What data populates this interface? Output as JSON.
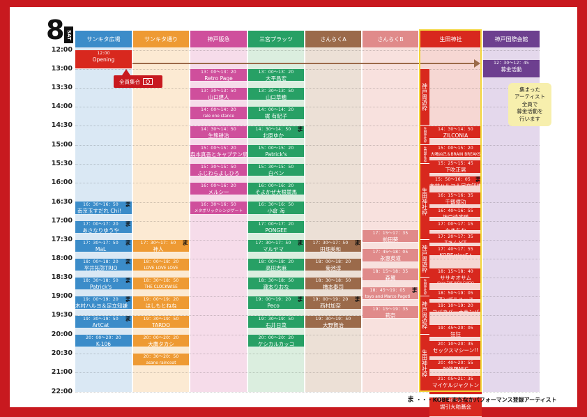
{
  "day": {
    "number": "8",
    "weekday": "SAT"
  },
  "colors": {
    "frame": "#c8191f",
    "highlight": "#f3d63a",
    "note_bg": "#f7efad",
    "arrow": "#9b6a4a"
  },
  "times": [
    "12:00",
    "13:00",
    "13:30",
    "14:00",
    "14:30",
    "15:00",
    "15:30",
    "16:00",
    "16:30",
    "17:00",
    "17:30",
    "18:00",
    "18:30",
    "19:00",
    "19:30",
    "20:00",
    "20:30",
    "21:00",
    "22:00"
  ],
  "columns": [
    {
      "name": "サンキタ広場",
      "head": "#3b8cc9",
      "bg": "#dae8f4"
    },
    {
      "name": "サンキタ通り",
      "head": "#ee9a33",
      "bg": "#fcead3"
    },
    {
      "name": "神戸阪急",
      "head": "#cf4f9c",
      "bg": "#f6dcea"
    },
    {
      "name": "三宮プラッツ",
      "head": "#27a065",
      "bg": "#dbeedf"
    },
    {
      "name": "さんらくA",
      "head": "#9b6a4a",
      "bg": "#ece0d6"
    },
    {
      "name": "さんらくB",
      "head": "#e08a8a",
      "bg": "#f8e1de"
    },
    {
      "name": "生田神社",
      "head": "#d8281e",
      "bg": "#f6d7d3"
    },
    {
      "name": "神戸国際会館",
      "head": "#6d3f8f",
      "bg": "#e4d8ec"
    }
  ],
  "opening": {
    "time": "12:00",
    "name": "Opening"
  },
  "gathering": {
    "label": "全員集合",
    "icon": "camera-icon"
  },
  "note": {
    "lines": [
      "集まった",
      "アーティスト",
      "全員で",
      "募金活動を",
      "行います"
    ]
  },
  "bands": [
    {
      "label": "神戸周遊枠"
    },
    {
      "label": "生田神社枠"
    },
    {
      "label": "生田神社枠"
    },
    {
      "label": "生田神社枠"
    },
    {
      "label": "神戸周遊枠"
    },
    {
      "label": "生田神社枠"
    },
    {
      "label": "神戸周遊枠"
    },
    {
      "label": "生田神社枠"
    }
  ],
  "events": {
    "sankita_hiroba": [
      {
        "time": "16：30～16：50",
        "name": "南京玉すだれ Chi！",
        "mark": true
      },
      {
        "time": "17：00～17：20",
        "name": "あさなりゆうや",
        "mark": true
      },
      {
        "time": "17：30～17：50",
        "name": "MaL",
        "mark": true
      },
      {
        "time": "18：00～18：20",
        "name": "平井拓弥TRIO",
        "mark": true
      },
      {
        "time": "18：30～18：50",
        "name": "Patrick's",
        "mark": true
      },
      {
        "time": "19：00～19：20",
        "name": "木村ハルヨ＆足立知謙",
        "mark": true
      },
      {
        "time": "19：30～19：50",
        "name": "ArtCat",
        "mark": true
      },
      {
        "time": "20：00～20：20",
        "name": "K-106",
        "mark": false
      }
    ],
    "sankita_dori": [
      {
        "time": "17：30～17：50",
        "name": "神人",
        "mark": true
      },
      {
        "time": "18：00～18：20",
        "name": "LOVE LOVE LOVE",
        "mark": false
      },
      {
        "time": "18：30～18：50",
        "name": "THE CLOCKWISE",
        "mark": false
      },
      {
        "time": "19：00～19：20",
        "name": "はしもとねね",
        "mark": false
      },
      {
        "time": "19：30～19：50",
        "name": "TARDO",
        "sub": "from カーランパンマーランド",
        "mark": false
      },
      {
        "time": "20：00～20：20",
        "name": "大鷹タカシ",
        "mark": false
      },
      {
        "time": "20：30～20：50",
        "name": "asano raincoat",
        "mark": false
      }
    ],
    "kobe_hankyu": [
      {
        "time": "13：00～13：20",
        "name": "Retro Page",
        "mark": false
      },
      {
        "time": "13：30～13：50",
        "name": "山口建人",
        "sub": "(Fr.あいなドラム担当)",
        "mark": false
      },
      {
        "time": "14：00～14：20",
        "name": "rale one stance",
        "mark": false
      },
      {
        "time": "14：30～14：50",
        "name": "生熊耕治",
        "sub": "(cune)",
        "mark": false
      },
      {
        "time": "15：00～15：20",
        "name": "森本真吾とキャプテン鳥",
        "sub": "(Sarotoline)",
        "mark": false
      },
      {
        "time": "15：30～15：50",
        "name": "ふじわらよしひろ",
        "mark": false
      },
      {
        "time": "16：00～16：20",
        "name": "メルシー",
        "mark": false
      },
      {
        "time": "16：30～16：50",
        "name": "メタボリックシンジゲート",
        "mark": false
      }
    ],
    "sannomiya_platz": [
      {
        "time": "13：00～13：20",
        "name": "大平昌宏",
        "mark": false
      },
      {
        "time": "13：30～13：50",
        "name": "山口草穂",
        "mark": false
      },
      {
        "time": "14：00～14：20",
        "name": "梶 有紀子",
        "mark": false
      },
      {
        "time": "14：30～14：50",
        "name": "北原ゆか",
        "mark": true
      },
      {
        "time": "15：00～15：20",
        "name": "Patrick's",
        "mark": false
      },
      {
        "time": "15：30～15：50",
        "name": "白ベン",
        "mark": false
      },
      {
        "time": "16：00～16：20",
        "name": "そよかぜ大根競馬",
        "mark": false
      },
      {
        "time": "16：30～16：50",
        "name": "小倉 海",
        "sub": "(Fr.サーカル)",
        "mark": false
      },
      {
        "time": "17：00～17：20",
        "name": "PONGEE",
        "mark": false
      },
      {
        "time": "17：30～17：50",
        "name": "マルヤマ",
        "sub": "from ニワトリにヒゲ・フロウパーク",
        "mark": true
      },
      {
        "time": "18：00～18：20",
        "name": "高田志麻",
        "mark": false
      },
      {
        "time": "18：30～18：50",
        "name": "瀧本りおな",
        "mark": false
      },
      {
        "time": "19：00～19：20",
        "name": "Peco",
        "mark": true
      },
      {
        "time": "19：30～19：50",
        "name": "石井日菜",
        "mark": false
      },
      {
        "time": "20：00～20：20",
        "name": "ケシカルカッコ",
        "mark": false
      }
    ],
    "sanraku_a": [
      {
        "time": "17：30～17：50",
        "name": "田畑美和",
        "mark": true
      },
      {
        "time": "18：00～18：20",
        "name": "菊池淳",
        "mark": false
      },
      {
        "time": "18：30～18：50",
        "name": "橋本泰司",
        "mark": false
      },
      {
        "time": "19：00～19：20",
        "name": "西村加奈",
        "mark": true
      },
      {
        "time": "19：30～19：50",
        "name": "大野賢治",
        "mark": false
      }
    ],
    "sanraku_b": [
      {
        "time": "17：15～17：35",
        "name": "前田葵",
        "mark": false
      },
      {
        "time": "17：45～18：05",
        "name": "永惠英道",
        "mark": false
      },
      {
        "time": "18：15～18：35",
        "name": "森翼",
        "mark": false
      },
      {
        "time": "18：45～19：05",
        "name": "toyo and Marco Pagoti",
        "mark": true
      },
      {
        "time": "19：15～19：35",
        "name": "莉奈",
        "mark": false
      }
    ],
    "ikuta_jinja": [
      {
        "time": "14：30～14：50",
        "name": "ZILCONIA",
        "mark": false
      },
      {
        "time": "15：00～15：20",
        "name": "大鳴凶己＆BRAIN BREAKS",
        "mark": false
      },
      {
        "time": "15：25～15：45",
        "name": "下吃正晃",
        "sub": "(orange=Peace)",
        "mark": false
      },
      {
        "time": "15：50～16：05",
        "name": "木村ハルヨ＆足立知謙",
        "mark": true
      },
      {
        "time": "16：15～16：35",
        "name": "千鶴億功",
        "mark": false
      },
      {
        "time": "16：40～16：55",
        "name": "神戸清盛隊",
        "mark": false
      },
      {
        "time": "17：00～17：15",
        "name": "たきちか",
        "mark": false
      },
      {
        "time": "17：20～17：35",
        "name": "TあんどT",
        "mark": false
      },
      {
        "time": "17：40～17：55",
        "name": "KOBErriesS♪",
        "mark": false
      },
      {
        "time": "18：15～18：40",
        "name": "ササキオサム",
        "sub": "(from THE HIGH CHICK)",
        "mark": false
      },
      {
        "time": "18：50～19：05",
        "name": "アンガルユース",
        "mark": false
      },
      {
        "time": "19：10～19：20",
        "name": "コバカバーナサンバ",
        "mark": false
      },
      {
        "time": "19：45～20：05",
        "name": "狂狂",
        "mark": false
      },
      {
        "time": "20：10～20：35",
        "name": "セックスマシーン!!",
        "mark": false
      },
      {
        "time": "20：40～20：55",
        "name": "阿修羅MIC",
        "mark": false
      },
      {
        "time": "21：05～21：35",
        "name": "マイケルジャクトン",
        "mark": false
      },
      {
        "time": "21：40～22：10",
        "name": "堀引大粕蕎会",
        "mark": false
      }
    ],
    "kokusai_kaikan": [
      {
        "time": "12：30～12：45",
        "name": "募金活動",
        "mark": false
      }
    ]
  },
  "footer": {
    "mark": "ま",
    "text": "・・・KOBE まちなかパフォーマンス登録アーティスト"
  }
}
